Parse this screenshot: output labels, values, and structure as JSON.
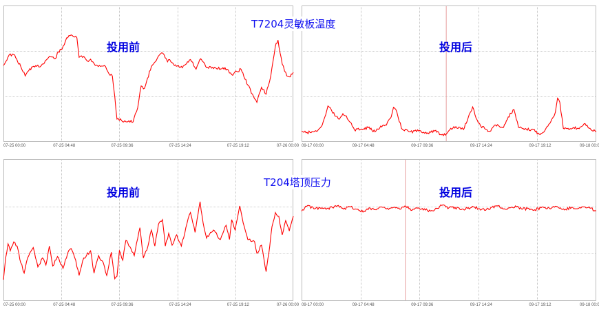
{
  "colors": {
    "series": "#ff0000",
    "grid": "#999999",
    "frame": "#bbbbbb",
    "marker": "#e8a0a0",
    "text": "#0000ee"
  },
  "titles": {
    "top": "T7204灵敏板温度",
    "bottom": "T204塔顶压力"
  },
  "chart_data": [
    {
      "type": "line",
      "title": "T7204灵敏板温度",
      "annotation": "投用前",
      "xlim": [
        "07-25 00:00",
        "07-26 00:00"
      ],
      "ylim": [
        0,
        3
      ],
      "grid": true,
      "xticks": [
        "07-25 00:00",
        "07-25 04:48",
        "07-25 09:36",
        "07-25 14:24",
        "07-25 19:12",
        "07-26 00:00"
      ],
      "series": [
        {
          "x": [
            "00:00",
            "00:28",
            "00:51",
            "01:26",
            "01:48",
            "02:11",
            "02:45",
            "03:08",
            "03:48",
            "04:17",
            "04:33",
            "04:51",
            "05:14",
            "05:42",
            "06:05",
            "06:16",
            "06:39",
            "06:56",
            "07:13",
            "07:36",
            "08:22",
            "08:44",
            "09:01",
            "09:13",
            "09:24",
            "09:47",
            "10:44",
            "11:07",
            "11:24",
            "11:41",
            "12:15",
            "12:49",
            "13:12",
            "13:35",
            "13:46",
            "14:09",
            "14:49",
            "15:29",
            "15:57",
            "16:20",
            "16:49",
            "17:34",
            "18:31",
            "18:54",
            "19:40",
            "20:14",
            "20:37",
            "20:59",
            "21:22",
            "21:45",
            "22:08",
            "22:31",
            "22:44",
            "23:05",
            "23:28",
            "23:45",
            "24:00"
          ],
          "y": [
            1.68,
            1.91,
            1.92,
            1.66,
            1.45,
            1.61,
            1.66,
            1.68,
            1.88,
            1.83,
            1.98,
            2.04,
            2.29,
            2.34,
            2.29,
            1.86,
            1.88,
            1.78,
            1.82,
            1.68,
            1.68,
            1.5,
            1.45,
            1.0,
            0.5,
            0.47,
            0.44,
            0.75,
            1.23,
            1.18,
            1.66,
            1.88,
            1.95,
            1.76,
            1.81,
            1.68,
            1.63,
            1.81,
            1.6,
            1.83,
            1.63,
            1.63,
            1.6,
            1.48,
            1.6,
            1.25,
            1.05,
            0.87,
            1.2,
            1.05,
            1.45,
            2.11,
            2.24,
            1.71,
            1.45,
            1.43,
            1.53
          ]
        }
      ]
    },
    {
      "type": "line",
      "title": "T7204灵敏板温度",
      "annotation": "投用后",
      "xlim": [
        "09-17 00:00",
        "09-18 00:00"
      ],
      "ylim": [
        0,
        3
      ],
      "grid": true,
      "marker_time": "11:47",
      "xticks": [
        "09-17 00:00",
        "09-17 04:48",
        "09-17 09:36",
        "09-17 14:24",
        "09-17 19:12",
        "09-18 00:00"
      ],
      "series": [
        {
          "x": [
            "00:00",
            "00:22",
            "00:56",
            "01:19",
            "01:41",
            "01:58",
            "02:09",
            "02:26",
            "02:43",
            "03:05",
            "03:22",
            "03:39",
            "04:18",
            "04:52",
            "05:25",
            "05:59",
            "06:27",
            "06:55",
            "07:18",
            "07:29",
            "07:46",
            "08:08",
            "08:47",
            "09:32",
            "10:17",
            "10:51",
            "11:19",
            "11:47",
            "12:09",
            "12:54",
            "13:11",
            "13:39",
            "13:56",
            "14:13",
            "14:35",
            "15:20",
            "15:43",
            "16:27",
            "16:50",
            "17:18",
            "17:40",
            "18:08",
            "18:53",
            "19:21",
            "19:49",
            "20:23",
            "20:40",
            "20:51",
            "21:02",
            "21:19",
            "21:47",
            "22:04",
            "22:32",
            "23:06",
            "23:34",
            "24:00"
          ],
          "y": [
            0.24,
            0.2,
            0.22,
            0.25,
            0.37,
            0.6,
            0.79,
            0.7,
            0.57,
            0.5,
            0.62,
            0.57,
            0.27,
            0.27,
            0.31,
            0.22,
            0.35,
            0.37,
            0.55,
            0.76,
            0.65,
            0.3,
            0.22,
            0.24,
            0.2,
            0.24,
            0.16,
            0.17,
            0.3,
            0.32,
            0.27,
            0.6,
            0.77,
            0.52,
            0.35,
            0.23,
            0.37,
            0.32,
            0.55,
            0.71,
            0.32,
            0.27,
            0.27,
            0.17,
            0.25,
            0.5,
            0.65,
            0.96,
            0.87,
            0.3,
            0.27,
            0.3,
            0.3,
            0.4,
            0.27,
            0.22
          ]
        }
      ]
    },
    {
      "type": "line",
      "title": "T204塔顶压力",
      "annotation": "投用前",
      "xlim": [
        "07-25 00:00",
        "07-26 00:00"
      ],
      "ylim": [
        0,
        3
      ],
      "grid": true,
      "xticks": [
        "07-25 00:00",
        "07-25 04:48",
        "07-25 09:36",
        "07-25 14:24",
        "07-25 19:12",
        "07-26 00:00"
      ],
      "series": [
        {
          "x": [
            "00:00",
            "00:11",
            "00:23",
            "00:34",
            "00:51",
            "01:08",
            "01:26",
            "01:43",
            "02:00",
            "02:28",
            "02:51",
            "03:14",
            "03:31",
            "03:48",
            "04:05",
            "04:28",
            "04:56",
            "05:19",
            "05:36",
            "05:59",
            "06:16",
            "06:39",
            "07:13",
            "07:30",
            "07:53",
            "08:16",
            "08:33",
            "08:56",
            "09:13",
            "09:24",
            "09:36",
            "09:53",
            "10:08",
            "10:33",
            "10:50",
            "11:18",
            "11:35",
            "11:58",
            "12:15",
            "12:32",
            "12:50",
            "13:10",
            "13:24",
            "13:41",
            "13:58",
            "14:21",
            "14:44",
            "15:06",
            "15:29",
            "15:52",
            "16:17",
            "16:32",
            "16:49",
            "17:23",
            "17:58",
            "18:26",
            "18:43",
            "18:54",
            "19:11",
            "19:34",
            "19:51",
            "20:14",
            "20:48",
            "20:59",
            "21:22",
            "21:45",
            "22:03",
            "22:14",
            "22:31",
            "22:48",
            "23:05",
            "23:22",
            "23:40",
            "24:00"
          ],
          "y": [
            0.45,
            0.91,
            1.21,
            1.06,
            1.25,
            1.16,
            0.81,
            0.59,
            0.91,
            1.13,
            0.72,
            0.91,
            0.76,
            1.16,
            0.74,
            0.94,
            0.69,
            1.01,
            1.11,
            0.86,
            0.54,
            0.91,
            1.06,
            0.59,
            0.96,
            0.81,
            0.54,
            1.03,
            0.47,
            0.52,
            1.06,
            0.86,
            1.28,
            1.11,
            0.96,
            1.55,
            0.91,
            1.16,
            1.5,
            1.16,
            1.62,
            1.72,
            1.16,
            1.43,
            1.18,
            1.4,
            1.16,
            1.55,
            1.87,
            1.45,
            2.1,
            1.65,
            1.33,
            1.5,
            1.3,
            1.6,
            1.3,
            1.72,
            1.5,
            2.01,
            1.65,
            1.3,
            1.25,
            1.01,
            1.18,
            0.62,
            1.16,
            1.57,
            1.87,
            1.79,
            1.4,
            1.7,
            1.48,
            1.79
          ]
        }
      ]
    },
    {
      "type": "line",
      "title": "T204塔顶压力",
      "annotation": "投用后",
      "xlim": [
        "09-17 00:00",
        "09-18 00:00"
      ],
      "ylim": [
        0,
        3
      ],
      "grid": true,
      "marker_time": "08:27",
      "xticks": [
        "09-17 00:00",
        "09-17 04:48",
        "09-17 09:36",
        "09-17 14:24",
        "09-17 19:12",
        "09-18 00:00"
      ],
      "series": [
        {
          "x": [
            "00:00",
            "00:30",
            "01:00",
            "01:30",
            "02:00",
            "02:30",
            "03:00",
            "03:30",
            "04:00",
            "04:30",
            "05:00",
            "05:30",
            "06:00",
            "06:30",
            "07:00",
            "07:30",
            "08:00",
            "08:30",
            "09:00",
            "09:30",
            "10:00",
            "10:30",
            "11:00",
            "11:30",
            "12:00",
            "12:30",
            "13:00",
            "13:30",
            "14:00",
            "14:30",
            "15:00",
            "15:30",
            "16:00",
            "16:30",
            "17:00",
            "17:30",
            "18:00",
            "18:30",
            "19:00",
            "19:30",
            "20:00",
            "20:30",
            "21:00",
            "21:30",
            "22:00",
            "22:30",
            "23:00",
            "23:30",
            "24:00"
          ],
          "y": [
            1.9,
            2.02,
            1.95,
            1.97,
            1.94,
            1.98,
            2.02,
            1.96,
            1.99,
            1.94,
            1.88,
            1.97,
            1.93,
            1.99,
            1.96,
            1.98,
            1.94,
            2.0,
            1.92,
            1.97,
            1.95,
            1.9,
            1.96,
            2.03,
            1.97,
            1.98,
            1.93,
            1.96,
            1.99,
            1.95,
            1.92,
            1.98,
            2.01,
            1.95,
            1.97,
            1.99,
            1.94,
            1.96,
            1.93,
            1.97,
            1.95,
            2.0,
            1.96,
            1.94,
            1.98,
            1.95,
            1.99,
            1.96,
            1.91
          ]
        }
      ]
    }
  ]
}
